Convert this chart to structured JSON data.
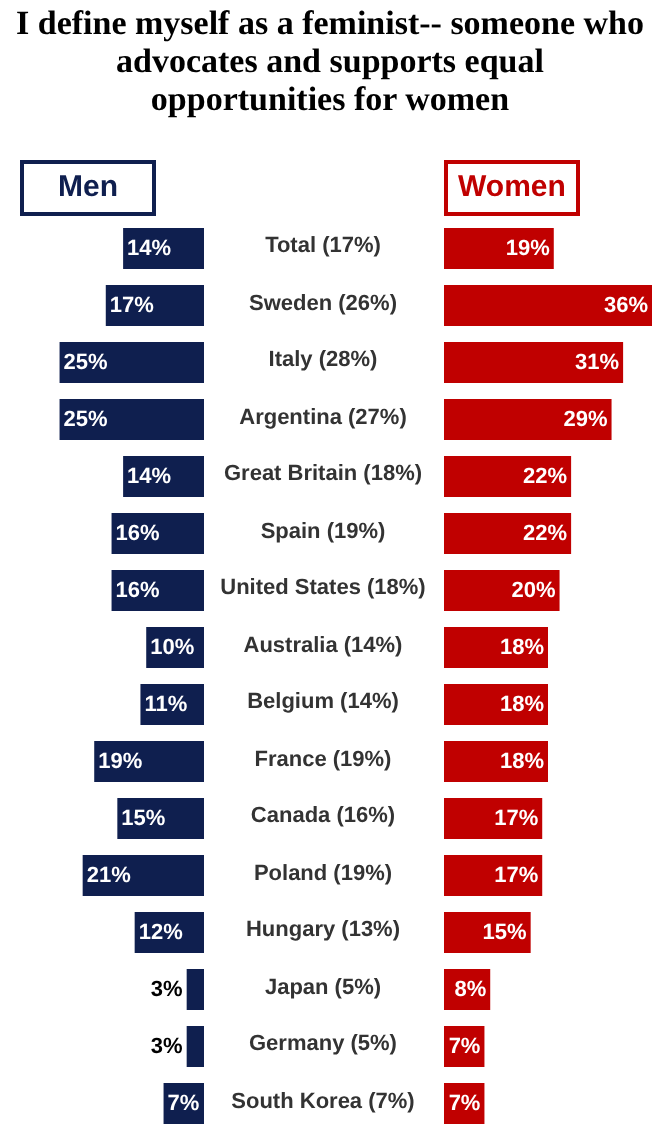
{
  "chart_data": [
    {
      "type": "bar",
      "orientation": "horizontal",
      "legend": "top",
      "title": "I define myself as a feminist-- someone who advocates and supports equal opportunities for women",
      "categories": [
        "Total  (17%)",
        "Sweden (26%)",
        "Italy (28%)",
        "Argentina (27%)",
        "Great Britain (18%)",
        "Spain (19%)",
        "United States (18%)",
        "Australia (14%)",
        "Belgium (14%)",
        "France (19%)",
        "Canada (16%)",
        "Poland (19%)",
        "Hungary (13%)",
        "Japan (5%)",
        "Germany (5%)",
        "South Korea (7%)"
      ],
      "series": [
        {
          "name": "Men",
          "color": "#0f1f4f",
          "values": [
            14,
            17,
            25,
            25,
            14,
            16,
            16,
            10,
            11,
            19,
            15,
            21,
            12,
            3,
            3,
            7
          ],
          "value_labels": [
            "14%",
            "17%",
            "25%",
            "25%",
            "14%",
            "16%",
            "16%",
            "10%",
            "11%",
            "19%",
            "15%",
            "21%",
            "12%",
            "3%",
            "3%",
            "7%"
          ]
        }
      ]
    },
    {
      "type": "bar",
      "orientation": "horizontal",
      "legend": "top",
      "categories": [
        null,
        null,
        null,
        null,
        null,
        null,
        null,
        null,
        null,
        null,
        null,
        null,
        null,
        null,
        null,
        null
      ],
      "series": [
        {
          "name": "Women",
          "color": "#c00000",
          "values": [
            19,
            36,
            31,
            29,
            22,
            22,
            20,
            18,
            18,
            18,
            17,
            17,
            15,
            8,
            7,
            7
          ],
          "value_labels": [
            "19%",
            "36%",
            "31%",
            "29%",
            "22%",
            "22%",
            "20%",
            "18%",
            "18%",
            "18%",
            "17%",
            "17%",
            "15%",
            "8%",
            "7%",
            "7%"
          ]
        }
      ]
    }
  ]
}
